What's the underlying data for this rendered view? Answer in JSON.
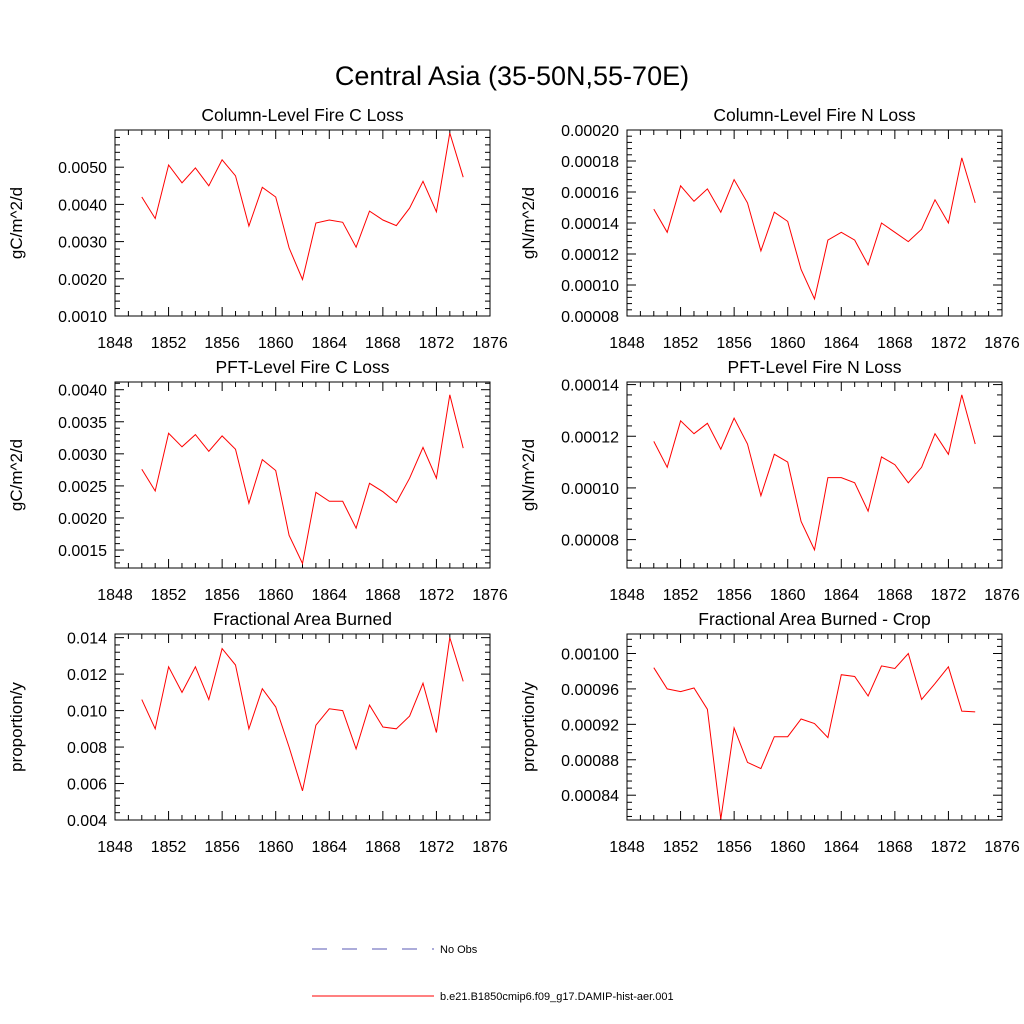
{
  "page_title": "Central Asia (35-50N,55-70E)",
  "legend": [
    {
      "label": "No Obs",
      "color": "#5a5ab4",
      "style": "dashed"
    },
    {
      "label": "b.e21.B1850cmip6.f09_g17.DAMIP-hist-aer.001",
      "color": "#ff0000",
      "style": "solid"
    }
  ],
  "chart_data": [
    {
      "type": "line",
      "title": "Column-Level Fire C Loss",
      "ylabel": "gC/m^2/d",
      "xlim": [
        1848,
        1876
      ],
      "ylim": [
        0.001,
        0.006
      ],
      "xticks": [
        "1848",
        "1852",
        "1856",
        "1860",
        "1864",
        "1868",
        "1872",
        "1876"
      ],
      "yticks": [
        "0.0010",
        "0.0020",
        "0.0030",
        "0.0040",
        "0.0050"
      ],
      "x": [
        1850,
        1851,
        1852,
        1853,
        1854,
        1855,
        1856,
        1857,
        1858,
        1859,
        1860,
        1861,
        1862,
        1863,
        1864,
        1865,
        1866,
        1867,
        1868,
        1869,
        1870,
        1871,
        1872,
        1873,
        1874
      ],
      "series": [
        {
          "name": "b.e21.B1850cmip6.f09_g17.DAMIP-hist-aer.001",
          "color": "#ff0000",
          "values": [
            0.0042,
            0.00362,
            0.00506,
            0.00458,
            0.00498,
            0.0045,
            0.0052,
            0.00477,
            0.00342,
            0.00446,
            0.0042,
            0.00283,
            0.00198,
            0.0035,
            0.00358,
            0.00352,
            0.00285,
            0.00382,
            0.00358,
            0.00343,
            0.0039,
            0.00462,
            0.0038,
            0.00592,
            0.00473
          ]
        }
      ]
    },
    {
      "type": "line",
      "title": "Column-Level Fire N Loss",
      "ylabel": "gN/m^2/d",
      "xlim": [
        1848,
        1876
      ],
      "ylim": [
        8e-05,
        0.0002
      ],
      "xticks": [
        "1848",
        "1852",
        "1856",
        "1860",
        "1864",
        "1868",
        "1872",
        "1876"
      ],
      "yticks": [
        "0.00008",
        "0.00010",
        "0.00012",
        "0.00014",
        "0.00016",
        "0.00018",
        "0.00020"
      ],
      "x": [
        1850,
        1851,
        1852,
        1853,
        1854,
        1855,
        1856,
        1857,
        1858,
        1859,
        1860,
        1861,
        1862,
        1863,
        1864,
        1865,
        1866,
        1867,
        1868,
        1869,
        1870,
        1871,
        1872,
        1873,
        1874
      ],
      "series": [
        {
          "name": "b.e21.B1850cmip6.f09_g17.DAMIP-hist-aer.001",
          "color": "#ff0000",
          "values": [
            0.000149,
            0.000134,
            0.000164,
            0.000154,
            0.000162,
            0.000147,
            0.000168,
            0.000153,
            0.000122,
            0.000147,
            0.000141,
            0.00011,
            9.1e-05,
            0.000129,
            0.000134,
            0.000129,
            0.000113,
            0.00014,
            0.000134,
            0.000128,
            0.000136,
            0.000155,
            0.00014,
            0.000182,
            0.000153
          ]
        }
      ]
    },
    {
      "type": "line",
      "title": "PFT-Level Fire C Loss",
      "ylabel": "gC/m^2/d",
      "xlim": [
        1848,
        1876
      ],
      "ylim": [
        0.00122,
        0.00412
      ],
      "xticks": [
        "1848",
        "1852",
        "1856",
        "1860",
        "1864",
        "1868",
        "1872",
        "1876"
      ],
      "yticks": [
        "0.0015",
        "0.0020",
        "0.0025",
        "0.0030",
        "0.0035",
        "0.0040"
      ],
      "x": [
        1850,
        1851,
        1852,
        1853,
        1854,
        1855,
        1856,
        1857,
        1858,
        1859,
        1860,
        1861,
        1862,
        1863,
        1864,
        1865,
        1866,
        1867,
        1868,
        1869,
        1870,
        1871,
        1872,
        1873,
        1874
      ],
      "series": [
        {
          "name": "b.e21.B1850cmip6.f09_g17.DAMIP-hist-aer.001",
          "color": "#ff0000",
          "values": [
            0.00276,
            0.00242,
            0.00332,
            0.00311,
            0.0033,
            0.00304,
            0.00328,
            0.00307,
            0.00223,
            0.00291,
            0.00274,
            0.00173,
            0.00129,
            0.0024,
            0.00226,
            0.00226,
            0.00184,
            0.00254,
            0.00241,
            0.00224,
            0.00262,
            0.0031,
            0.00262,
            0.00392,
            0.00309
          ]
        }
      ]
    },
    {
      "type": "line",
      "title": "PFT-Level Fire N Loss",
      "ylabel": "gN/m^2/d",
      "xlim": [
        1848,
        1876
      ],
      "ylim": [
        6.9e-05,
        0.000141
      ],
      "xticks": [
        "1848",
        "1852",
        "1856",
        "1860",
        "1864",
        "1868",
        "1872",
        "1876"
      ],
      "yticks": [
        "0.00008",
        "0.00010",
        "0.00012",
        "0.00014"
      ],
      "x": [
        1850,
        1851,
        1852,
        1853,
        1854,
        1855,
        1856,
        1857,
        1858,
        1859,
        1860,
        1861,
        1862,
        1863,
        1864,
        1865,
        1866,
        1867,
        1868,
        1869,
        1870,
        1871,
        1872,
        1873,
        1874
      ],
      "series": [
        {
          "name": "b.e21.B1850cmip6.f09_g17.DAMIP-hist-aer.001",
          "color": "#ff0000",
          "values": [
            0.000118,
            0.000108,
            0.000126,
            0.000121,
            0.000125,
            0.000115,
            0.000127,
            0.000117,
            9.7e-05,
            0.000113,
            0.00011,
            8.7e-05,
            7.6e-05,
            0.000104,
            0.000104,
            0.000102,
            9.1e-05,
            0.000112,
            0.000109,
            0.000102,
            0.000108,
            0.000121,
            0.000113,
            0.000136,
            0.000117
          ]
        }
      ]
    },
    {
      "type": "line",
      "title": "Fractional Area Burned",
      "ylabel": "proportion/y",
      "xlim": [
        1848,
        1876
      ],
      "ylim": [
        0.004,
        0.0142
      ],
      "xticks": [
        "1848",
        "1852",
        "1856",
        "1860",
        "1864",
        "1868",
        "1872",
        "1876"
      ],
      "yticks": [
        "0.004",
        "0.006",
        "0.008",
        "0.010",
        "0.012",
        "0.014"
      ],
      "x": [
        1850,
        1851,
        1852,
        1853,
        1854,
        1855,
        1856,
        1857,
        1858,
        1859,
        1860,
        1861,
        1862,
        1863,
        1864,
        1865,
        1866,
        1867,
        1868,
        1869,
        1870,
        1871,
        1872,
        1873,
        1874
      ],
      "series": [
        {
          "name": "b.e21.B1850cmip6.f09_g17.DAMIP-hist-aer.001",
          "color": "#ff0000",
          "values": [
            0.0106,
            0.009,
            0.0124,
            0.011,
            0.0124,
            0.0106,
            0.0134,
            0.0125,
            0.009,
            0.0112,
            0.0102,
            0.008,
            0.0056,
            0.0092,
            0.0101,
            0.01,
            0.0079,
            0.0103,
            0.0091,
            0.009,
            0.0097,
            0.0115,
            0.0088,
            0.014,
            0.0116
          ]
        }
      ]
    },
    {
      "type": "line",
      "title": "Fractional Area Burned - Crop",
      "ylabel": "proportion/y",
      "xlim": [
        1848,
        1876
      ],
      "ylim": [
        0.000812,
        0.001022
      ],
      "xticks": [
        "1848",
        "1852",
        "1856",
        "1860",
        "1864",
        "1868",
        "1872",
        "1876"
      ],
      "yticks": [
        "0.00084",
        "0.00088",
        "0.00092",
        "0.00096",
        "0.00100"
      ],
      "x": [
        1850,
        1851,
        1852,
        1853,
        1854,
        1855,
        1856,
        1857,
        1858,
        1859,
        1860,
        1861,
        1862,
        1863,
        1864,
        1865,
        1866,
        1867,
        1868,
        1869,
        1870,
        1871,
        1872,
        1873,
        1874
      ],
      "series": [
        {
          "name": "b.e21.B1850cmip6.f09_g17.DAMIP-hist-aer.001",
          "color": "#ff0000",
          "values": [
            0.000984,
            0.00096,
            0.000957,
            0.000961,
            0.000937,
            0.000813,
            0.000916,
            0.000877,
            0.00087,
            0.000906,
            0.000906,
            0.000926,
            0.000921,
            0.000905,
            0.000976,
            0.000974,
            0.000952,
            0.000986,
            0.000983,
            0.001,
            0.000948,
            0.000966,
            0.000985,
            0.000935,
            0.000934
          ]
        }
      ]
    }
  ]
}
